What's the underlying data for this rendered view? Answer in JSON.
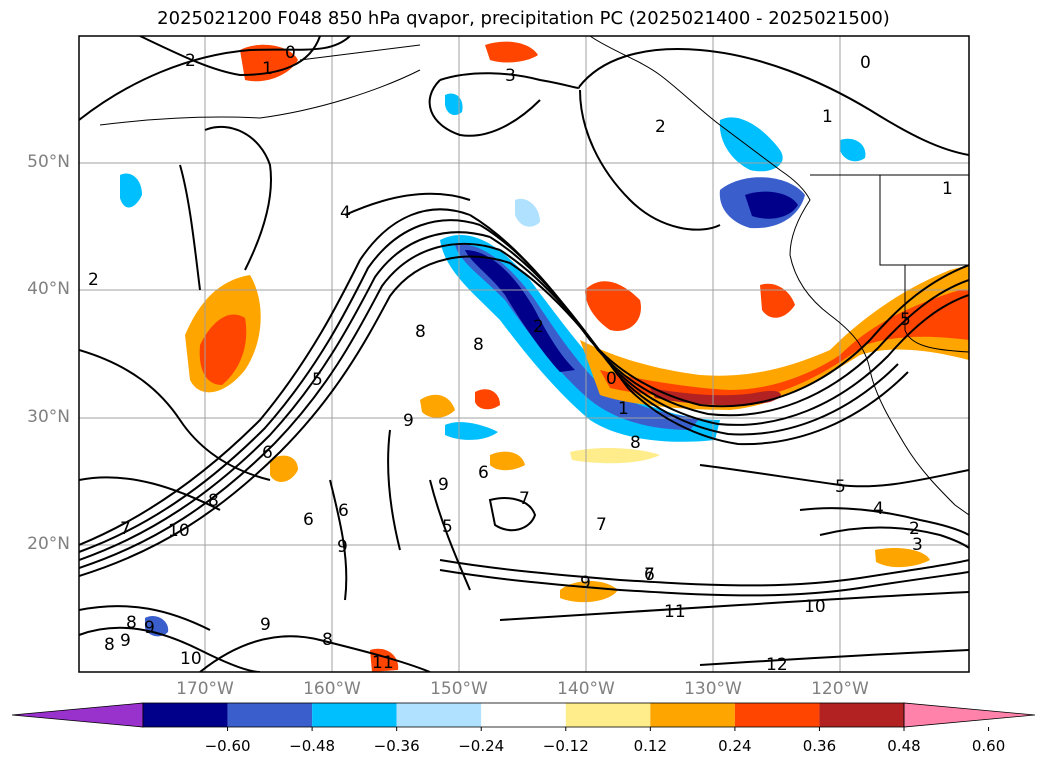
{
  "title": "2025021200 F048 850 hPa qvapor, precipitation PC (2025021400 - 2025021500)",
  "lat_labels": [
    "50°N",
    "40°N",
    "30°N",
    "20°N"
  ],
  "lon_labels": [
    "170°W",
    "160°W",
    "150°W",
    "140°W",
    "130°W",
    "120°W"
  ],
  "contour_labels": [
    "0",
    "2",
    "1",
    "3",
    "0",
    "1",
    "1",
    "2",
    "4",
    "2",
    "8",
    "8",
    "5",
    "2",
    "0",
    "1",
    "8",
    "9",
    "6",
    "9",
    "6",
    "7",
    "5",
    "7",
    "6",
    "9",
    "10",
    "7",
    "8",
    "6",
    "9",
    "7",
    "5",
    "4",
    "2",
    "3",
    "6",
    "9",
    "11",
    "10",
    "9",
    "8",
    "8",
    "8",
    "9",
    "10",
    "11",
    "12",
    "5"
  ],
  "colorbar": {
    "colors": [
      "#9932cc",
      "#00008b",
      "#3a5fcd",
      "#00bfff",
      "#b0e2ff",
      "#ffffff",
      "#ffec8b",
      "#ffa500",
      "#ff4500",
      "#b22222",
      "#ff82ab"
    ],
    "labels": [
      "−0.60",
      "−0.48",
      "−0.36",
      "−0.24",
      "−0.12",
      "0.12",
      "0.24",
      "0.36",
      "0.48",
      "0.60"
    ]
  }
}
